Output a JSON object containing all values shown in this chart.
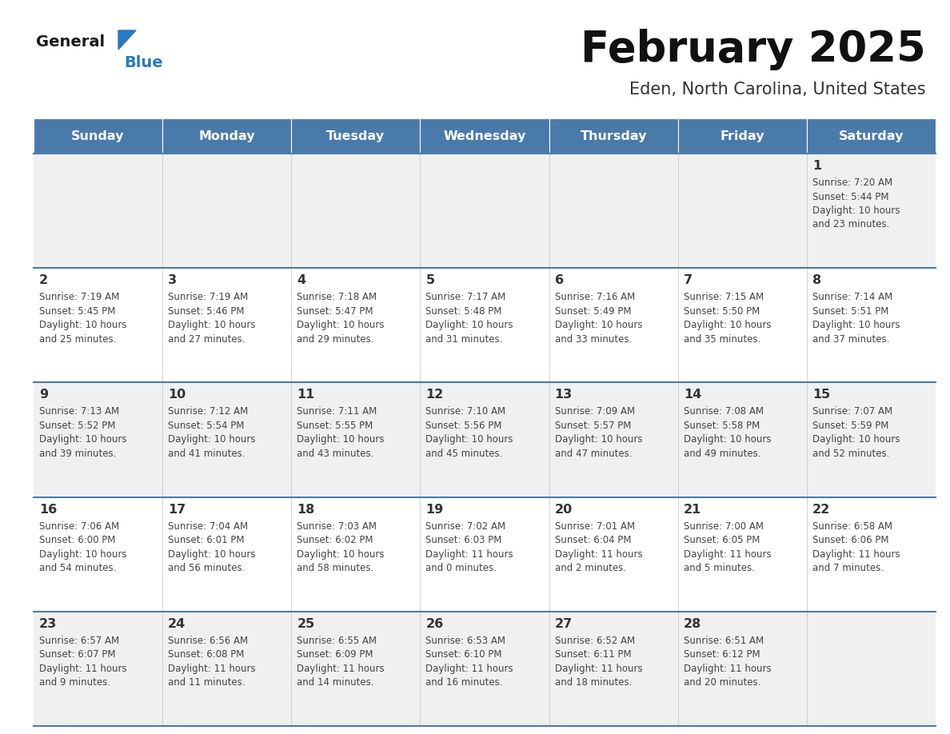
{
  "title": "February 2025",
  "subtitle": "Eden, North Carolina, United States",
  "header_bg": "#4a7aaa",
  "header_text_color": "#ffffff",
  "days_of_week": [
    "Sunday",
    "Monday",
    "Tuesday",
    "Wednesday",
    "Thursday",
    "Friday",
    "Saturday"
  ],
  "row_bg_odd": "#f0f0f0",
  "row_bg_even": "#ffffff",
  "cell_text_color": "#444444",
  "date_text_color": "#333333",
  "separator_color": "#4a7aaa",
  "logo_general_color": "#1a1a1a",
  "logo_blue_color": "#2879c0",
  "calendar_data": [
    [
      null,
      null,
      null,
      null,
      null,
      null,
      {
        "day": 1,
        "sunrise": "7:20 AM",
        "sunset": "5:44 PM",
        "daylight_line1": "Daylight: 10 hours",
        "daylight_line2": "and 23 minutes."
      }
    ],
    [
      {
        "day": 2,
        "sunrise": "7:19 AM",
        "sunset": "5:45 PM",
        "daylight_line1": "Daylight: 10 hours",
        "daylight_line2": "and 25 minutes."
      },
      {
        "day": 3,
        "sunrise": "7:19 AM",
        "sunset": "5:46 PM",
        "daylight_line1": "Daylight: 10 hours",
        "daylight_line2": "and 27 minutes."
      },
      {
        "day": 4,
        "sunrise": "7:18 AM",
        "sunset": "5:47 PM",
        "daylight_line1": "Daylight: 10 hours",
        "daylight_line2": "and 29 minutes."
      },
      {
        "day": 5,
        "sunrise": "7:17 AM",
        "sunset": "5:48 PM",
        "daylight_line1": "Daylight: 10 hours",
        "daylight_line2": "and 31 minutes."
      },
      {
        "day": 6,
        "sunrise": "7:16 AM",
        "sunset": "5:49 PM",
        "daylight_line1": "Daylight: 10 hours",
        "daylight_line2": "and 33 minutes."
      },
      {
        "day": 7,
        "sunrise": "7:15 AM",
        "sunset": "5:50 PM",
        "daylight_line1": "Daylight: 10 hours",
        "daylight_line2": "and 35 minutes."
      },
      {
        "day": 8,
        "sunrise": "7:14 AM",
        "sunset": "5:51 PM",
        "daylight_line1": "Daylight: 10 hours",
        "daylight_line2": "and 37 minutes."
      }
    ],
    [
      {
        "day": 9,
        "sunrise": "7:13 AM",
        "sunset": "5:52 PM",
        "daylight_line1": "Daylight: 10 hours",
        "daylight_line2": "and 39 minutes."
      },
      {
        "day": 10,
        "sunrise": "7:12 AM",
        "sunset": "5:54 PM",
        "daylight_line1": "Daylight: 10 hours",
        "daylight_line2": "and 41 minutes."
      },
      {
        "day": 11,
        "sunrise": "7:11 AM",
        "sunset": "5:55 PM",
        "daylight_line1": "Daylight: 10 hours",
        "daylight_line2": "and 43 minutes."
      },
      {
        "day": 12,
        "sunrise": "7:10 AM",
        "sunset": "5:56 PM",
        "daylight_line1": "Daylight: 10 hours",
        "daylight_line2": "and 45 minutes."
      },
      {
        "day": 13,
        "sunrise": "7:09 AM",
        "sunset": "5:57 PM",
        "daylight_line1": "Daylight: 10 hours",
        "daylight_line2": "and 47 minutes."
      },
      {
        "day": 14,
        "sunrise": "7:08 AM",
        "sunset": "5:58 PM",
        "daylight_line1": "Daylight: 10 hours",
        "daylight_line2": "and 49 minutes."
      },
      {
        "day": 15,
        "sunrise": "7:07 AM",
        "sunset": "5:59 PM",
        "daylight_line1": "Daylight: 10 hours",
        "daylight_line2": "and 52 minutes."
      }
    ],
    [
      {
        "day": 16,
        "sunrise": "7:06 AM",
        "sunset": "6:00 PM",
        "daylight_line1": "Daylight: 10 hours",
        "daylight_line2": "and 54 minutes."
      },
      {
        "day": 17,
        "sunrise": "7:04 AM",
        "sunset": "6:01 PM",
        "daylight_line1": "Daylight: 10 hours",
        "daylight_line2": "and 56 minutes."
      },
      {
        "day": 18,
        "sunrise": "7:03 AM",
        "sunset": "6:02 PM",
        "daylight_line1": "Daylight: 10 hours",
        "daylight_line2": "and 58 minutes."
      },
      {
        "day": 19,
        "sunrise": "7:02 AM",
        "sunset": "6:03 PM",
        "daylight_line1": "Daylight: 11 hours",
        "daylight_line2": "and 0 minutes."
      },
      {
        "day": 20,
        "sunrise": "7:01 AM",
        "sunset": "6:04 PM",
        "daylight_line1": "Daylight: 11 hours",
        "daylight_line2": "and 2 minutes."
      },
      {
        "day": 21,
        "sunrise": "7:00 AM",
        "sunset": "6:05 PM",
        "daylight_line1": "Daylight: 11 hours",
        "daylight_line2": "and 5 minutes."
      },
      {
        "day": 22,
        "sunrise": "6:58 AM",
        "sunset": "6:06 PM",
        "daylight_line1": "Daylight: 11 hours",
        "daylight_line2": "and 7 minutes."
      }
    ],
    [
      {
        "day": 23,
        "sunrise": "6:57 AM",
        "sunset": "6:07 PM",
        "daylight_line1": "Daylight: 11 hours",
        "daylight_line2": "and 9 minutes."
      },
      {
        "day": 24,
        "sunrise": "6:56 AM",
        "sunset": "6:08 PM",
        "daylight_line1": "Daylight: 11 hours",
        "daylight_line2": "and 11 minutes."
      },
      {
        "day": 25,
        "sunrise": "6:55 AM",
        "sunset": "6:09 PM",
        "daylight_line1": "Daylight: 11 hours",
        "daylight_line2": "and 14 minutes."
      },
      {
        "day": 26,
        "sunrise": "6:53 AM",
        "sunset": "6:10 PM",
        "daylight_line1": "Daylight: 11 hours",
        "daylight_line2": "and 16 minutes."
      },
      {
        "day": 27,
        "sunrise": "6:52 AM",
        "sunset": "6:11 PM",
        "daylight_line1": "Daylight: 11 hours",
        "daylight_line2": "and 18 minutes."
      },
      {
        "day": 28,
        "sunrise": "6:51 AM",
        "sunset": "6:12 PM",
        "daylight_line1": "Daylight: 11 hours",
        "daylight_line2": "and 20 minutes."
      },
      null
    ]
  ]
}
